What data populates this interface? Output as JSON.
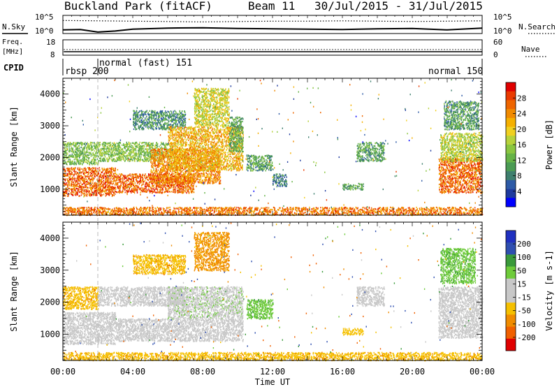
{
  "header": {
    "station": "Buckland Park (fitACF)",
    "beam": "Beam 11",
    "dates": "30/Jul/2015 - 31/Jul/2015"
  },
  "left_labels": {
    "nsky": "N.Sky",
    "nsky_ticks": [
      "10^5",
      "10^0"
    ],
    "freq": "Freq.",
    "freq_unit": "[MHz]",
    "freq_ticks": [
      "18",
      "8"
    ],
    "cpid": "CPID"
  },
  "right_labels": {
    "nsearch": "N.Search",
    "nsearch_ticks": [
      "10^5",
      "10^0"
    ],
    "nave": "Nave",
    "nave_ticks": [
      "60",
      "0"
    ]
  },
  "cpid_labels": [
    "rbsp 200",
    "normal (fast) 151",
    "normal 150"
  ],
  "colors": {
    "power": [
      "#0000ff",
      "#1e3a9e",
      "#2d5aa6",
      "#3e7f6e",
      "#4b9b54",
      "#66b347",
      "#8ac640",
      "#b7d23b",
      "#f0d020",
      "#f5b000",
      "#f08a00",
      "#ee6500",
      "#ea3a00",
      "#e00000"
    ],
    "velocity": [
      "#e00000",
      "#f06000",
      "#f08c00",
      "#f5c000",
      "#c8c8c8",
      "#c8c8c8",
      "#6ecb3a",
      "#3a9a3a",
      "#2f4fb0",
      "#2030c0"
    ]
  },
  "chart_data": [
    {
      "type": "line",
      "title": "",
      "series": [
        {
          "name": "N.Sky",
          "x_hours": [
            0,
            1,
            2,
            3,
            4,
            6,
            8,
            10,
            12,
            14,
            16,
            18,
            20,
            22,
            24
          ],
          "values_log10": [
            1.0,
            1.1,
            0.4,
            0.7,
            1.2,
            1.5,
            1.6,
            1.4,
            1.3,
            1.2,
            1.1,
            1.3,
            1.4,
            1.0,
            1.5
          ]
        },
        {
          "name": "N.Search",
          "x_hours": [
            0,
            2,
            4,
            6,
            8,
            10,
            12,
            14,
            16,
            18,
            20,
            22,
            24
          ],
          "values_log10": [
            3.6,
            3.5,
            3.4,
            3.3,
            3.2,
            3.3,
            3.4,
            3.4,
            3.5,
            3.4,
            3.3,
            3.4,
            3.5
          ]
        }
      ],
      "yticks": [
        "10^5",
        "10^0"
      ]
    },
    {
      "type": "line",
      "series": [
        {
          "name": "Freq.",
          "x_hours": [
            0.05,
            24
          ],
          "values": [
            10.3,
            10.3
          ]
        },
        {
          "name": "Nave",
          "x_hours": [
            0.05,
            24
          ],
          "values": [
            22,
            22
          ]
        }
      ],
      "ylim_freq": [
        8,
        18
      ],
      "ylim_nave": [
        0,
        60
      ],
      "yticks_left": [
        "18",
        "8"
      ],
      "yticks_right": [
        "60",
        "0"
      ]
    },
    {
      "type": "heatmap",
      "ylabel": "Slant Range [km]",
      "ylim": [
        180,
        4500
      ],
      "yticks": [
        "1000",
        "2000",
        "3000",
        "4000"
      ],
      "colorbar_label": "Power [dB]",
      "colorbar_ticks": [
        "4",
        "8",
        "12",
        "16",
        "20",
        "24",
        "28"
      ],
      "colorbar_range": [
        0,
        32
      ],
      "regions": [
        {
          "t0": 0.0,
          "t1": 3.0,
          "r0": 800,
          "r1": 1700,
          "level": 27
        },
        {
          "t0": 0.0,
          "t1": 2.0,
          "r0": 1800,
          "r1": 2500,
          "level": 13
        },
        {
          "t0": 2.0,
          "t1": 6.0,
          "r0": 1900,
          "r1": 2500,
          "level": 14
        },
        {
          "t0": 3.0,
          "t1": 7.5,
          "r0": 900,
          "r1": 1500,
          "level": 27
        },
        {
          "t0": 4.0,
          "t1": 7.0,
          "r0": 2900,
          "r1": 3500,
          "level": 9
        },
        {
          "t0": 5.0,
          "t1": 9.0,
          "r0": 1200,
          "r1": 2300,
          "level": 25
        },
        {
          "t0": 6.0,
          "t1": 10.3,
          "r0": 1600,
          "r1": 3000,
          "level": 22
        },
        {
          "t0": 7.5,
          "t1": 9.5,
          "r0": 3000,
          "r1": 4200,
          "level": 18
        },
        {
          "t0": 9.5,
          "t1": 10.3,
          "r0": 2200,
          "r1": 3300,
          "level": 11
        },
        {
          "t0": 10.5,
          "t1": 12.0,
          "r0": 1600,
          "r1": 2100,
          "level": 10
        },
        {
          "t0": 12.0,
          "t1": 12.8,
          "r0": 1100,
          "r1": 1500,
          "level": 8
        },
        {
          "t0": 16.0,
          "t1": 17.2,
          "r0": 1000,
          "r1": 1200,
          "level": 11
        },
        {
          "t0": 16.8,
          "t1": 18.4,
          "r0": 1900,
          "r1": 2500,
          "level": 10
        },
        {
          "t0": 21.5,
          "t1": 24.0,
          "r0": 900,
          "r1": 2000,
          "level": 27
        },
        {
          "t0": 21.6,
          "t1": 24.0,
          "r0": 1900,
          "r1": 2800,
          "level": 17
        },
        {
          "t0": 21.8,
          "t1": 23.8,
          "r0": 2900,
          "r1": 3800,
          "level": 10
        },
        {
          "t0": 0.0,
          "t1": 24.0,
          "r0": 200,
          "r1": 450,
          "level": 26
        }
      ]
    },
    {
      "type": "heatmap",
      "ylabel": "Slant Range [km]",
      "xlabel": "Time UT",
      "xticks": [
        "00:00",
        "04:00",
        "08:00",
        "12:00",
        "16:00",
        "20:00",
        "00:00"
      ],
      "ylim": [
        180,
        4500
      ],
      "yticks": [
        "1000",
        "2000",
        "3000",
        "4000"
      ],
      "colorbar_label": "Velocity [m s-1]",
      "colorbar_ticks": [
        "200",
        "100",
        "50",
        "15",
        "-15",
        "-50",
        "-100",
        "-200"
      ],
      "colorbar_range": [
        -250,
        250
      ],
      "regions": [
        {
          "t0": 0.0,
          "t1": 3.0,
          "r0": 700,
          "r1": 1700,
          "value": 0
        },
        {
          "t0": 0.0,
          "t1": 2.0,
          "r0": 1800,
          "r1": 2500,
          "value": -40
        },
        {
          "t0": 2.0,
          "t1": 7.0,
          "r0": 1900,
          "r1": 2500,
          "value": 0
        },
        {
          "t0": 3.0,
          "t1": 10.3,
          "r0": 800,
          "r1": 1500,
          "value": 0
        },
        {
          "t0": 6.0,
          "t1": 10.3,
          "r0": 1500,
          "r1": 2500,
          "value": 5
        },
        {
          "t0": 4.0,
          "t1": 7.0,
          "r0": 2900,
          "r1": 3500,
          "value": -40
        },
        {
          "t0": 7.5,
          "t1": 9.5,
          "r0": 3000,
          "r1": 4200,
          "value": -60
        },
        {
          "t0": 10.5,
          "t1": 12.0,
          "r0": 1500,
          "r1": 2100,
          "value": 40
        },
        {
          "t0": 16.0,
          "t1": 17.2,
          "r0": 1000,
          "r1": 1200,
          "value": -30
        },
        {
          "t0": 16.8,
          "t1": 18.4,
          "r0": 1900,
          "r1": 2500,
          "value": 0
        },
        {
          "t0": 21.5,
          "t1": 24.0,
          "r0": 900,
          "r1": 2500,
          "value": 0
        },
        {
          "t0": 21.6,
          "t1": 23.6,
          "r0": 2600,
          "r1": 3700,
          "value": 40
        },
        {
          "t0": 0.0,
          "t1": 24.0,
          "r0": 200,
          "r1": 450,
          "value": -40
        }
      ]
    }
  ]
}
